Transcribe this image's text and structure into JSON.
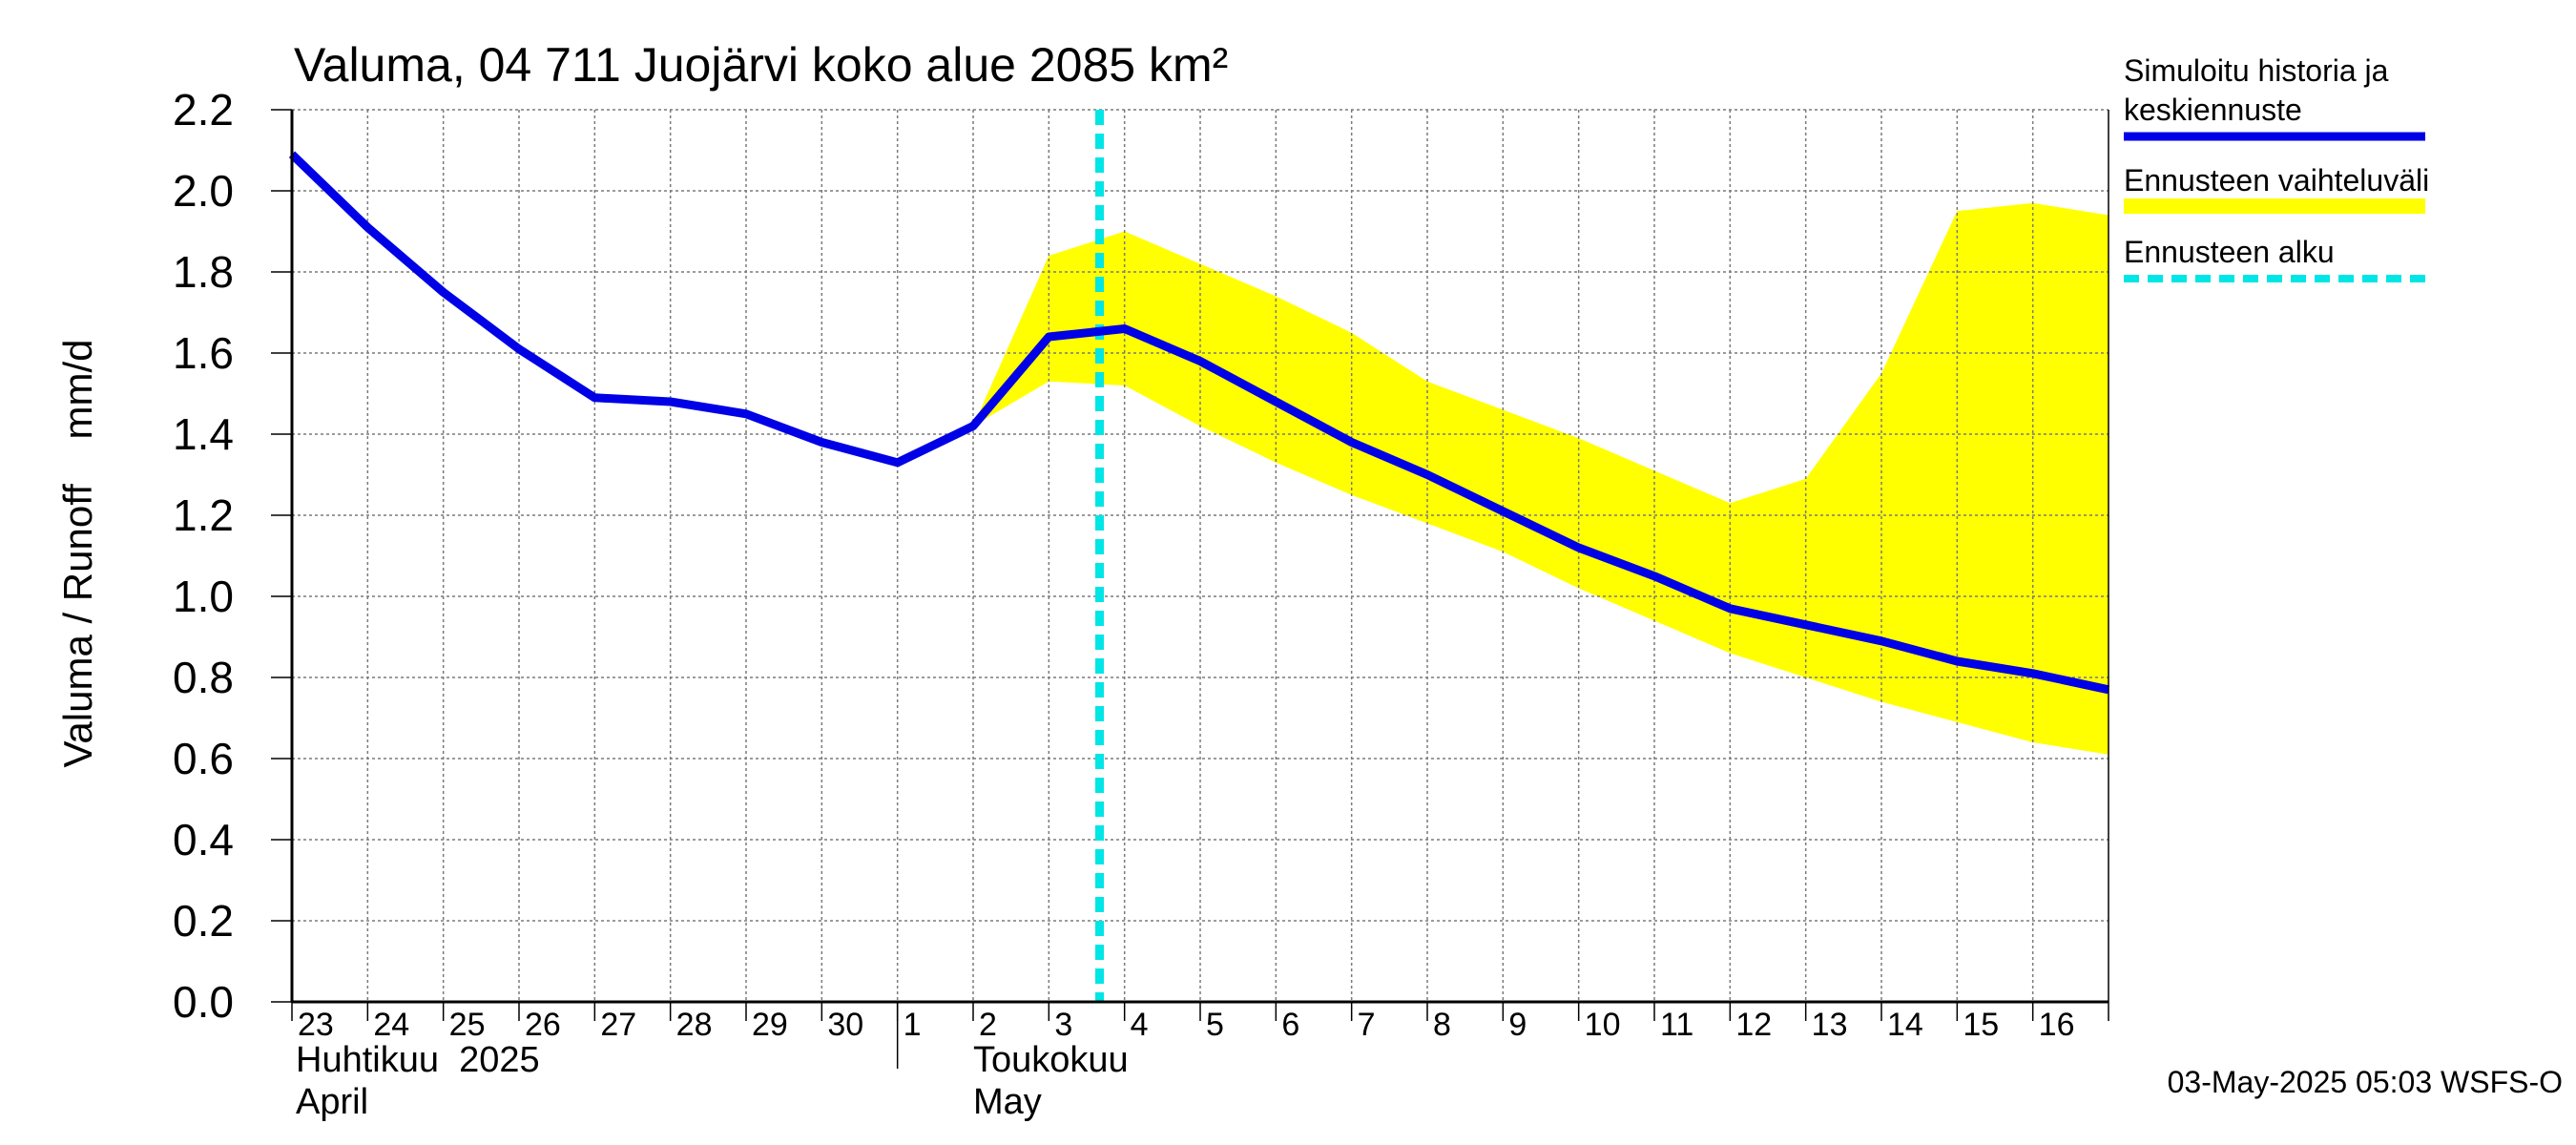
{
  "chart_data": {
    "type": "line",
    "title": "Valuma, 04 711 Juojärvi koko alue 2085 km²",
    "ylabel": "Valuma / Runoff    mm/d",
    "ylim": [
      0.0,
      2.2
    ],
    "yticks": [
      "0.0",
      "0.2",
      "0.4",
      "0.6",
      "0.8",
      "1.0",
      "1.2",
      "1.4",
      "1.6",
      "1.8",
      "2.0",
      "2.2"
    ],
    "x_day_labels": [
      "23",
      "24",
      "25",
      "26",
      "27",
      "28",
      "29",
      "30",
      "1",
      "2",
      "3",
      "4",
      "5",
      "6",
      "7",
      "8",
      "9",
      "10",
      "11",
      "12",
      "13",
      "14",
      "15",
      "16"
    ],
    "month_labels": [
      {
        "line1": "Huhtikuu  2025",
        "line2": "April"
      },
      {
        "line1": "Toukokuu",
        "line2": "May"
      }
    ],
    "grid": true,
    "legend_position": "right",
    "forecast_start_x": 10.67,
    "series": [
      {
        "name": "Simuloitu historia ja keskiennuste",
        "color": "#0000e6",
        "x": [
          0,
          1,
          2,
          3,
          4,
          5,
          6,
          7,
          8,
          9,
          10,
          11,
          12,
          13,
          14,
          15,
          16,
          17,
          18,
          19,
          20,
          21,
          22,
          23,
          24
        ],
        "y": [
          2.09,
          1.91,
          1.75,
          1.61,
          1.49,
          1.48,
          1.45,
          1.38,
          1.33,
          1.42,
          1.64,
          1.66,
          1.58,
          1.48,
          1.38,
          1.3,
          1.21,
          1.12,
          1.05,
          0.97,
          0.93,
          0.89,
          0.84,
          0.81,
          0.77
        ]
      }
    ],
    "band": {
      "name": "Ennusteen vaihteluväli",
      "color": "#ffff00",
      "x": [
        9,
        10,
        11,
        12,
        13,
        14,
        15,
        16,
        17,
        18,
        19,
        20,
        21,
        22,
        23,
        24
      ],
      "upper": [
        1.42,
        1.84,
        1.9,
        1.82,
        1.74,
        1.65,
        1.53,
        1.46,
        1.39,
        1.31,
        1.23,
        1.29,
        1.55,
        1.95,
        1.97,
        1.94
      ],
      "lower": [
        1.42,
        1.53,
        1.52,
        1.42,
        1.33,
        1.25,
        1.18,
        1.11,
        1.02,
        0.94,
        0.86,
        0.8,
        0.74,
        0.69,
        0.64,
        0.61
      ]
    },
    "legend": [
      {
        "label_line1": "Simuloitu historia ja",
        "label_line2": "keskiennuste",
        "style": "solid",
        "color": "#0000e6"
      },
      {
        "label_line1": "Ennusteen vaihteluväli",
        "label_line2": "",
        "style": "band",
        "color": "#ffff00"
      },
      {
        "label_line1": "Ennusteen alku",
        "label_line2": "",
        "style": "dashed",
        "color": "#00e5e5"
      }
    ],
    "footer": "03-May-2025 05:03 WSFS-O"
  }
}
